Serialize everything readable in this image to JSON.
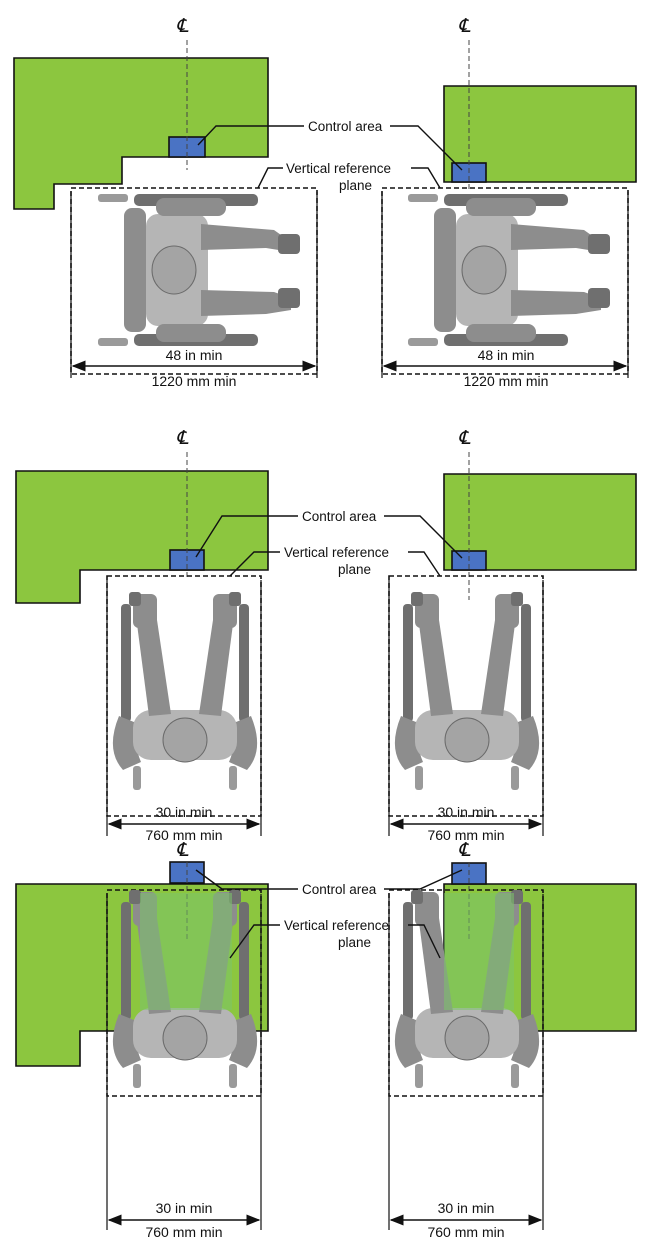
{
  "colors": {
    "counter": "#8cc63f",
    "control_area": "#4a73c4",
    "wheelchair": "#8d8d8d"
  },
  "labels": {
    "centerline": "℄",
    "control_area": "Control area",
    "vertical_reference_line1": "Vertical reference",
    "vertical_reference_line2": "plane"
  },
  "panels": [
    {
      "id": "parallel-approach",
      "wheelchair": "side-facing",
      "dim_in": "48 in min",
      "dim_mm": "1220 mm min"
    },
    {
      "id": "forward-approach",
      "wheelchair": "forward-facing",
      "dim_in": "30 in min",
      "dim_mm": "760 mm min"
    },
    {
      "id": "forward-approach-knee-clearance",
      "wheelchair": "forward-facing-under-counter",
      "dim_in": "30 in min",
      "dim_mm": "760 mm min"
    }
  ]
}
